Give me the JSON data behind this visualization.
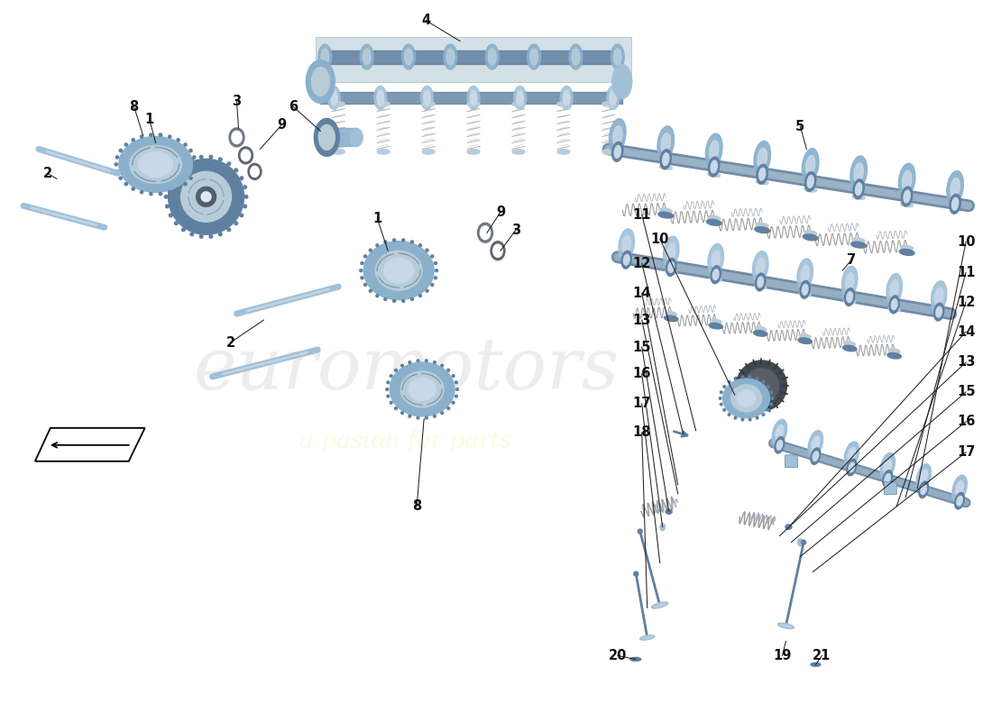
{
  "bg_color": "#ffffff",
  "watermark_text1": "euromotors",
  "watermark_text2": "a pasion for parts",
  "arrow_color": "#222222",
  "label_font_size": 10.5,
  "label_font_color": "#111111",
  "blue1": "#8ab0cc",
  "blue2": "#a0c0d8",
  "blue3": "#6080a0",
  "blue4": "#b8ccd8",
  "blue5": "#c8d8e8",
  "dark1": "#506070",
  "gray1": "#909090",
  "gray2": "#c0c8d0",
  "gear_color": "#8898b0",
  "spring_color": "#8090a8"
}
